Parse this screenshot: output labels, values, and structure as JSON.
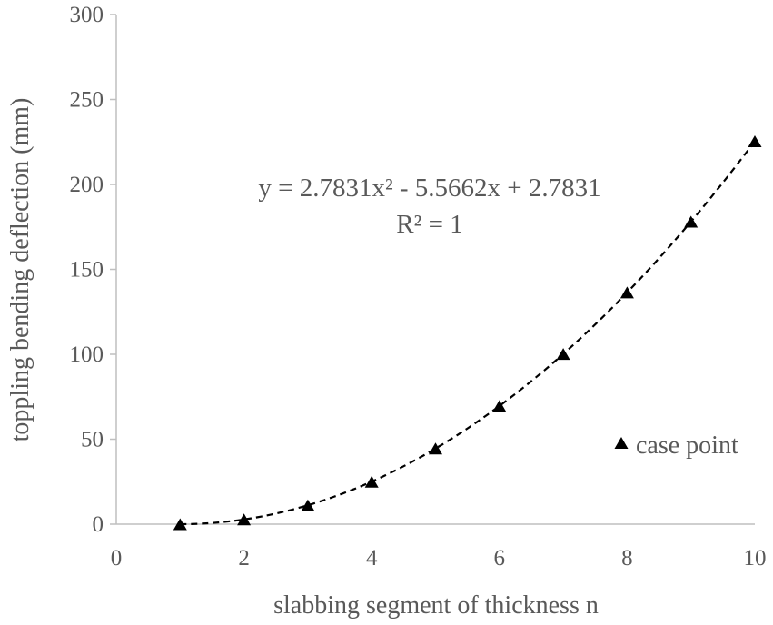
{
  "chart_data": {
    "type": "scatter",
    "xlabel": "slabbing segment of thickness n",
    "ylabel": "toppling bending deflection (mm)",
    "xlim": [
      0,
      10
    ],
    "ylim": [
      0,
      300
    ],
    "x_ticks": [
      "0",
      "2",
      "4",
      "6",
      "8",
      "10"
    ],
    "y_ticks": [
      "0",
      "50",
      "100",
      "150",
      "200",
      "250",
      "300"
    ],
    "grid": false,
    "legend_position": "bottom-right",
    "series": [
      {
        "name": "case point",
        "marker": "triangle",
        "color": "#000000",
        "x": [
          1,
          2,
          3,
          4,
          5,
          6,
          7,
          8,
          9,
          10
        ],
        "y": [
          0,
          2.8,
          11.1,
          25.0,
          44.5,
          69.6,
          100.2,
          136.4,
          178.1,
          225.4
        ]
      }
    ],
    "trendline": {
      "type": "polynomial",
      "order": 2,
      "style": "dashed",
      "color": "#000000",
      "coefficients": [
        2.7831,
        -5.5662,
        2.7831
      ],
      "x_range": [
        1,
        10
      ],
      "equation_text": "y = 2.7831x² - 5.5662x + 2.7831",
      "r2_text": "R² = 1"
    }
  }
}
